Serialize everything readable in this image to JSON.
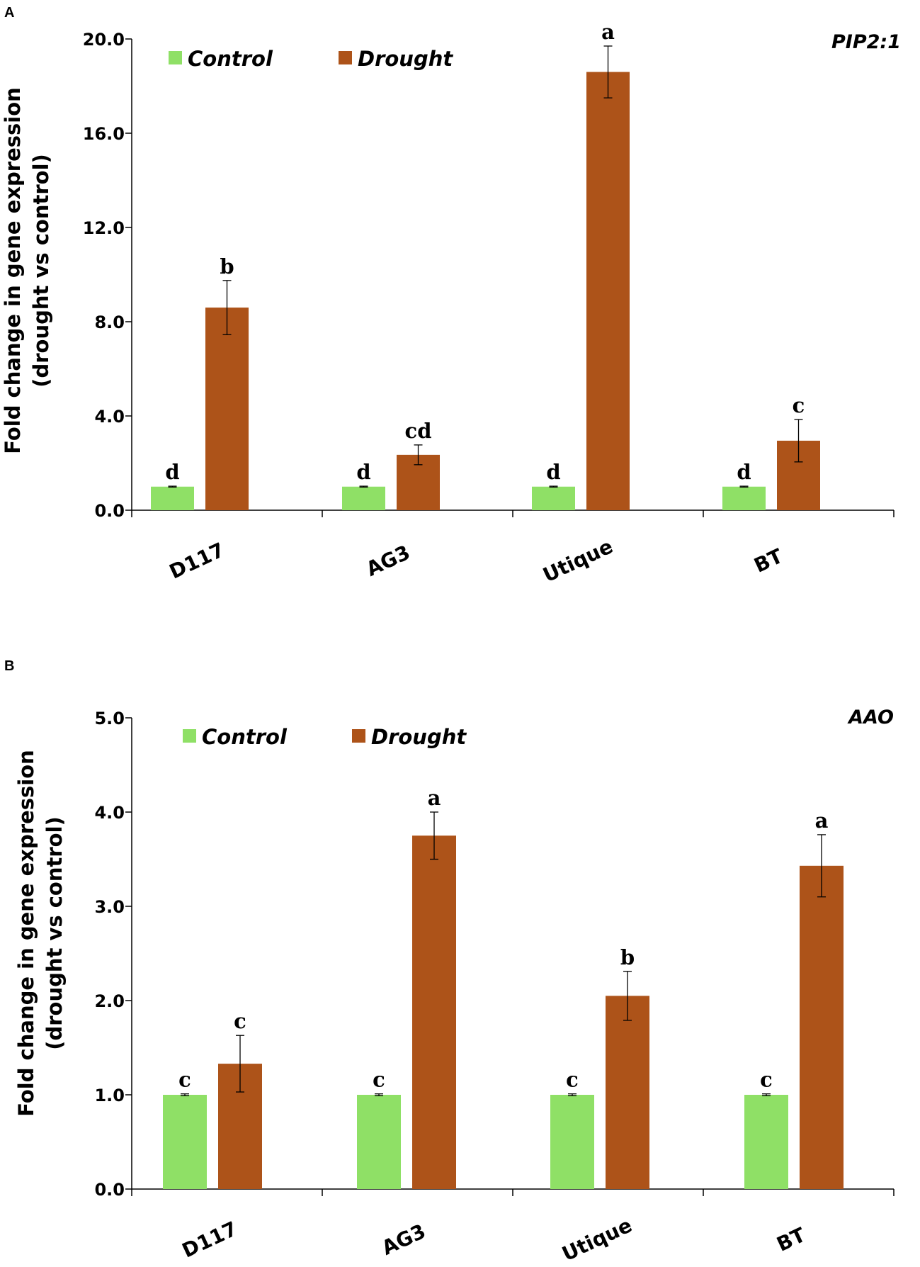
{
  "colors": {
    "control": "#8fe066",
    "drought": "#ad5319",
    "axis": "#000000"
  },
  "chart_data": [
    {
      "type": "bar",
      "panel": "A",
      "gene": "PIP2:1",
      "ylabel": [
        "Fold change in gene expression",
        "(drought vs control)"
      ],
      "xlabel": "",
      "ylim": [
        0,
        20
      ],
      "yticks": [
        "0.0",
        "4.0",
        "8.0",
        "12.0",
        "16.0",
        "20.0"
      ],
      "categories": [
        "D117",
        "AG3",
        "Utique",
        "BT"
      ],
      "legend": [
        "Control",
        "Drought"
      ],
      "series": [
        {
          "name": "Control",
          "values": [
            1.0,
            1.0,
            1.0,
            1.0
          ],
          "errors": [
            0.02,
            0.02,
            0.02,
            0.02
          ],
          "letters": [
            "d",
            "d",
            "d",
            "d"
          ]
        },
        {
          "name": "Drought",
          "values": [
            8.6,
            2.35,
            18.6,
            2.95
          ],
          "errors": [
            1.15,
            0.42,
            1.1,
            0.9
          ],
          "letters": [
            "b",
            "cd",
            "a",
            "c"
          ]
        }
      ]
    },
    {
      "type": "bar",
      "panel": "B",
      "gene": "AAO",
      "ylabel": [
        "Fold change in gene expression",
        "(drought vs control)"
      ],
      "xlabel": "",
      "ylim": [
        0,
        5
      ],
      "yticks": [
        "0.0",
        "1.0",
        "2.0",
        "3.0",
        "4.0",
        "5.0"
      ],
      "categories": [
        "D117",
        "AG3",
        "Utique",
        "BT"
      ],
      "legend": [
        "Control",
        "Drought"
      ],
      "series": [
        {
          "name": "Control",
          "values": [
            1.0,
            1.0,
            1.0,
            1.0
          ],
          "errors": [
            0.01,
            0.01,
            0.01,
            0.01
          ],
          "letters": [
            "c",
            "c",
            "c",
            "c"
          ]
        },
        {
          "name": "Drought",
          "values": [
            1.33,
            3.75,
            2.05,
            3.43
          ],
          "errors": [
            0.3,
            0.25,
            0.26,
            0.33
          ],
          "letters": [
            "c",
            "a",
            "b",
            "a"
          ]
        }
      ]
    }
  ]
}
